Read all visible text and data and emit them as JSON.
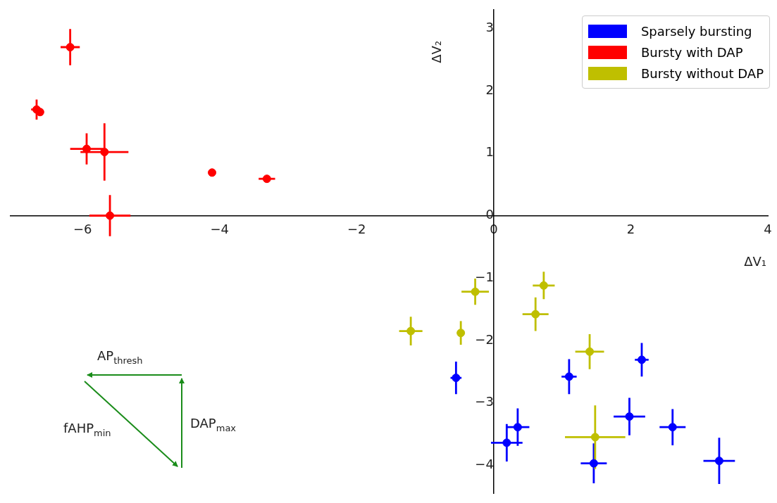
{
  "chart_data": {
    "type": "scatter",
    "xlabel": "ΔV₁",
    "ylabel": "ΔV₂",
    "xlim": [
      -7.05,
      4.0
    ],
    "ylim": [
      -4.45,
      3.3
    ],
    "xticks": [
      -6,
      -4,
      -2,
      0,
      2,
      4
    ],
    "yticks": [
      -4,
      -3,
      -2,
      -1,
      0,
      1,
      2,
      3
    ],
    "grid": false,
    "legend": "top right",
    "marker": "circle",
    "annotations": [
      "AP$_{thresh}$",
      "fAHP$_{min}$",
      "DAP$_{max}$"
    ],
    "series": [
      {
        "name": "Sparsely bursting",
        "color": "#0000ff",
        "x": [
          -0.55,
          1.1,
          2.16,
          0.19,
          0.35,
          1.46,
          1.98,
          2.61,
          3.29
        ],
        "values": [
          -2.6,
          -2.58,
          -2.31,
          -3.64,
          -3.39,
          -3.97,
          -3.22,
          -3.39,
          -3.93
        ],
        "xerrors": [
          0.08,
          0.11,
          0.1,
          0.23,
          0.17,
          0.19,
          0.23,
          0.19,
          0.23
        ],
        "errors": [
          0.26,
          0.28,
          0.27,
          0.3,
          0.3,
          0.32,
          0.3,
          0.29,
          0.37
        ]
      },
      {
        "name": "Bursty with DAP",
        "color": "#ff0000",
        "x": [
          -6.18,
          -6.67,
          -6.62,
          -5.94,
          -5.68,
          -4.11,
          -3.31,
          -5.6
        ],
        "values": [
          2.7,
          1.7,
          1.66,
          1.07,
          1.02,
          0.69,
          0.59,
          0.0
        ],
        "xerrors": [
          0.14,
          0.08,
          null,
          0.24,
          0.35,
          null,
          0.12,
          0.3
        ],
        "errors": [
          0.29,
          0.16,
          null,
          0.25,
          0.46,
          null,
          null,
          0.33
        ]
      },
      {
        "name": "Bursty without DAP",
        "color": "#bfbf00",
        "x": [
          -1.21,
          -0.48,
          -0.27,
          0.73,
          0.61,
          1.4,
          1.48
        ],
        "values": [
          -1.85,
          -1.88,
          -1.22,
          -1.12,
          -1.58,
          -2.18,
          -3.55
        ],
        "xerrors": [
          0.17,
          null,
          0.2,
          0.16,
          0.19,
          0.21,
          0.44
        ],
        "errors": [
          0.23,
          0.19,
          0.21,
          0.22,
          0.27,
          0.28,
          0.51
        ]
      }
    ]
  }
}
